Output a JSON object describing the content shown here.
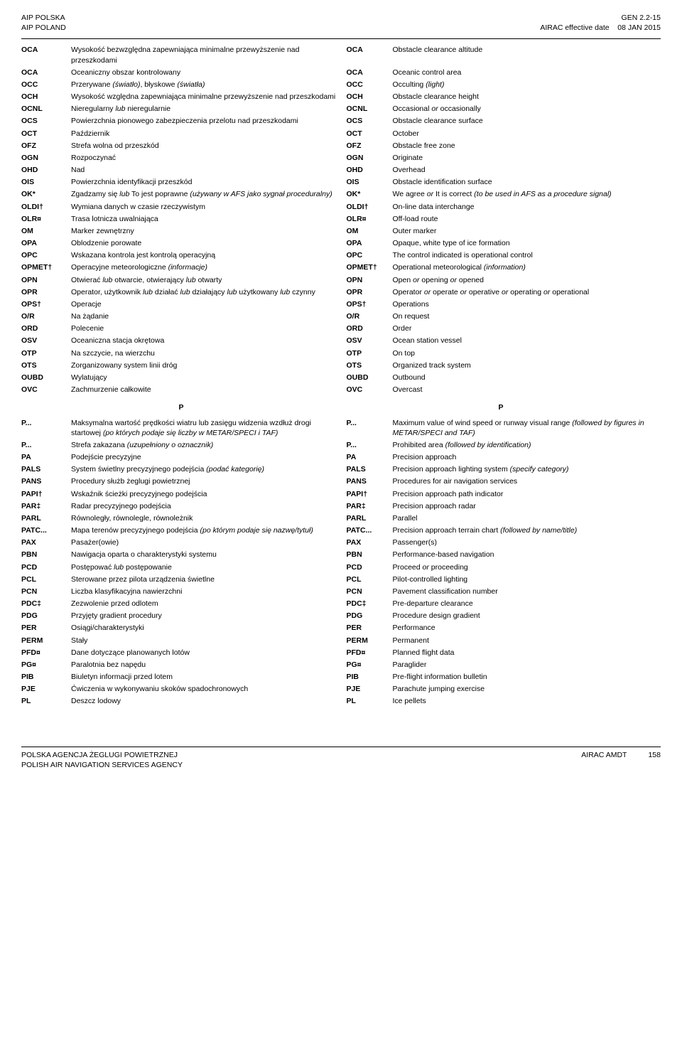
{
  "header": {
    "left_line1": "AIP POLSKA",
    "left_line2": "AIP POLAND",
    "right_code": "GEN 2.2-15",
    "right_label": "AIRAC effective date",
    "right_date": "08 JAN 2015"
  },
  "rows": [
    {
      "a1": "OCA",
      "d1": "Wysokość bezwzględna zapewniająca minimalne przewyższenie nad przeszkodami",
      "a2": "OCA",
      "d2": "Obstacle clearance altitude"
    },
    {
      "a1": "OCA",
      "d1": "Oceaniczny obszar kontrolowany",
      "a2": "OCA",
      "d2": "Oceanic control area"
    },
    {
      "a1": "OCC",
      "d1": "Przerywane <i>(światło)</i>, błyskowe <i>(światła)</i>",
      "a2": "OCC",
      "d2": "Occulting <i>(light)</i>"
    },
    {
      "a1": "OCH",
      "d1": "Wysokość względna zapewniająca minimalne przewyższenie nad przeszkodami",
      "a2": "OCH",
      "d2": "Obstacle clearance height"
    },
    {
      "a1": "OCNL",
      "d1": "Nieregularny <i>lub</i> nieregularnie",
      "a2": "OCNL",
      "d2": "Occasional <i>or</i> occasionally"
    },
    {
      "a1": "OCS",
      "d1": "Powierzchnia pionowego zabezpieczenia przelotu nad przeszkodami",
      "a2": "OCS",
      "d2": "Obstacle clearance surface"
    },
    {
      "a1": "OCT",
      "d1": "Październik",
      "a2": "OCT",
      "d2": "October"
    },
    {
      "a1": "OFZ",
      "d1": "Strefa wolna od przeszkód",
      "a2": "OFZ",
      "d2": "Obstacle free zone"
    },
    {
      "a1": "OGN",
      "d1": "Rozpoczynać",
      "a2": "OGN",
      "d2": "Originate"
    },
    {
      "a1": "OHD",
      "d1": "Nad",
      "a2": "OHD",
      "d2": "Overhead"
    },
    {
      "a1": "OIS",
      "d1": "Powierzchnia identyfikacji przeszkód",
      "a2": "OIS",
      "d2": "Obstacle identification surface"
    },
    {
      "a1": "OK*",
      "d1": "Zgadzamy się <i>lub</i> To jest poprawne <i>(używany w AFS jako sygnał proceduralny)</i>",
      "a2": "OK*",
      "d2": "We agree <i>or</i> It is correct <i>(to be used in AFS as a procedure signal)</i>"
    },
    {
      "a1": "OLDI†",
      "d1": "Wymiana danych w czasie rzeczywistym",
      "a2": "OLDI†",
      "d2": "On-line data interchange"
    },
    {
      "a1": "OLR¤",
      "d1": "Trasa lotnicza uwalniająca",
      "a2": "OLR¤",
      "d2": "Off-load route"
    },
    {
      "a1": "OM",
      "d1": "Marker zewnętrzny",
      "a2": "OM",
      "d2": "Outer marker"
    },
    {
      "a1": "OPA",
      "d1": "Oblodzenie porowate",
      "a2": "OPA",
      "d2": "Opaque, white type of ice formation"
    },
    {
      "a1": "OPC",
      "d1": "Wskazana kontrola jest kontrolą operacyjną",
      "a2": "OPC",
      "d2": "The control indicated is operational control"
    },
    {
      "a1": "OPMET†",
      "d1": "Operacyjne meteorologiczne <i>(informacje)</i>",
      "a2": "OPMET†",
      "d2": "Operational meteorological <i>(information)</i>"
    },
    {
      "a1": "OPN",
      "d1": "Otwierać <i>lub</i> otwarcie, otwierający <i>lub</i> otwarty",
      "a2": "OPN",
      "d2": "Open <i>or</i> opening <i>or</i> opened"
    },
    {
      "a1": "OPR",
      "d1": "Operator, użytkownik <i>lub</i> działać <i>lub</i> działający <i>lub</i> użytkowany <i>lub</i> czynny",
      "a2": "OPR",
      "d2": "Operator <i>or</i> operate <i>or</i> operative <i>or</i> operating <i>or</i> operational"
    },
    {
      "a1": "OPS†",
      "d1": "Operacje",
      "a2": "OPS†",
      "d2": "Operations"
    },
    {
      "a1": "O/R",
      "d1": "Na żądanie",
      "a2": "O/R",
      "d2": "On request"
    },
    {
      "a1": "ORD",
      "d1": "Polecenie",
      "a2": "ORD",
      "d2": "Order"
    },
    {
      "a1": "OSV",
      "d1": "Oceaniczna stacja okrętowa",
      "a2": "OSV",
      "d2": "Ocean station vessel"
    },
    {
      "a1": "OTP",
      "d1": "Na szczycie, na wierzchu",
      "a2": "OTP",
      "d2": "On top"
    },
    {
      "a1": "OTS",
      "d1": "Zorganizowany system linii dróg",
      "a2": "OTS",
      "d2": "Organized track system"
    },
    {
      "a1": "OUBD",
      "d1": "Wylatujący",
      "a2": "OUBD",
      "d2": "Outbound"
    },
    {
      "a1": "OVC",
      "d1": "Zachmurzenie całkowite",
      "a2": "OVC",
      "d2": "Overcast"
    }
  ],
  "sectionP": "P",
  "rowsP": [
    {
      "a1": "P...",
      "d1": "Maksymalna wartość prędkości wiatru lub zasięgu widzenia wzdłuż drogi startowej <i>(po których podaje się liczby w METAR/SPECI i TAF)</i>",
      "a2": "P...",
      "d2": "Maximum value of wind speed or runway visual range <i>(followed by figures in METAR/SPECI and TAF)</i>"
    },
    {
      "a1": "P...",
      "d1": "Strefa zakazana <i>(uzupełniony o oznacznik)</i>",
      "a2": "P...",
      "d2": "Prohibited area <i>(followed by identification)</i>"
    },
    {
      "a1": "PA",
      "d1": "Podejście precyzyjne",
      "a2": "PA",
      "d2": "Precision approach"
    },
    {
      "a1": "PALS",
      "d1": "System świetlny precyzyjnego podejścia <i>(podać kategorię)</i>",
      "a2": "PALS",
      "d2": "Precision approach lighting system <i>(specify category)</i>"
    },
    {
      "a1": "PANS",
      "d1": "Procedury służb żeglugi powietrznej",
      "a2": "PANS",
      "d2": "Procedures for air navigation services"
    },
    {
      "a1": "PAPI†",
      "d1": "Wskaźnik ścieżki precyzyjnego podejścia",
      "a2": "PAPI†",
      "d2": "Precision approach path indicator"
    },
    {
      "a1": "PAR‡",
      "d1": "Radar precyzyjnego podejścia",
      "a2": "PAR‡",
      "d2": "Precision approach radar"
    },
    {
      "a1": "PARL",
      "d1": "Równoległy, równolegle, równoleżnik",
      "a2": "PARL",
      "d2": "Parallel"
    },
    {
      "a1": "PATC...",
      "d1": "Mapa terenów precyzyjnego podejścia <i>(po którym podaje się nazwę/tytuł)</i>",
      "a2": "PATC...",
      "d2": "Precision approach terrain chart <i>(followed by name/title)</i>"
    },
    {
      "a1": "PAX",
      "d1": "Pasażer(owie)",
      "a2": "PAX",
      "d2": "Passenger(s)"
    },
    {
      "a1": "PBN",
      "d1": "Nawigacja oparta o charakterystyki systemu",
      "a2": "PBN",
      "d2": "Performance-based navigation"
    },
    {
      "a1": "PCD",
      "d1": "Postępować <i>lub</i> postępowanie",
      "a2": "PCD",
      "d2": "Proceed <i>or</i> proceeding"
    },
    {
      "a1": "PCL",
      "d1": "Sterowane przez pilota urządzenia świetlne",
      "a2": "PCL",
      "d2": "Pilot-controlled lighting"
    },
    {
      "a1": "PCN",
      "d1": "Liczba klasyfikacyjna nawierzchni",
      "a2": "PCN",
      "d2": "Pavement classification number"
    },
    {
      "a1": "PDC‡",
      "d1": "Zezwolenie przed odlotem",
      "a2": "PDC‡",
      "d2": "Pre-departure clearance"
    },
    {
      "a1": "PDG",
      "d1": "Przyjęty gradient procedury",
      "a2": "PDG",
      "d2": "Procedure design gradient"
    },
    {
      "a1": "PER",
      "d1": "Osiągi/charakterystyki",
      "a2": "PER",
      "d2": "Performance"
    },
    {
      "a1": "PERM",
      "d1": "Stały",
      "a2": "PERM",
      "d2": "Permanent"
    },
    {
      "a1": "PFD¤",
      "d1": "Dane dotyczące planowanych lotów",
      "a2": "PFD¤",
      "d2": "Planned flight data"
    },
    {
      "a1": "PG¤",
      "d1": "Paralotnia bez napędu",
      "a2": "PG¤",
      "d2": "Paraglider"
    },
    {
      "a1": "PIB",
      "d1": "Biuletyn informacji przed lotem",
      "a2": "PIB",
      "d2": "Pre-flight information bulletin"
    },
    {
      "a1": "PJE",
      "d1": "Ćwiczenia w wykonywaniu skoków spadochronowych",
      "a2": "PJE",
      "d2": "Parachute jumping exercise"
    },
    {
      "a1": "PL",
      "d1": "Deszcz lodowy",
      "a2": "PL",
      "d2": "Ice pellets"
    }
  ],
  "footer": {
    "left_line1": "POLSKA AGENCJA ŻEGLUGI POWIETRZNEJ",
    "left_line2": "POLISH AIR NAVIGATION SERVICES AGENCY",
    "right_label": "AIRAC AMDT",
    "right_num": "158"
  }
}
